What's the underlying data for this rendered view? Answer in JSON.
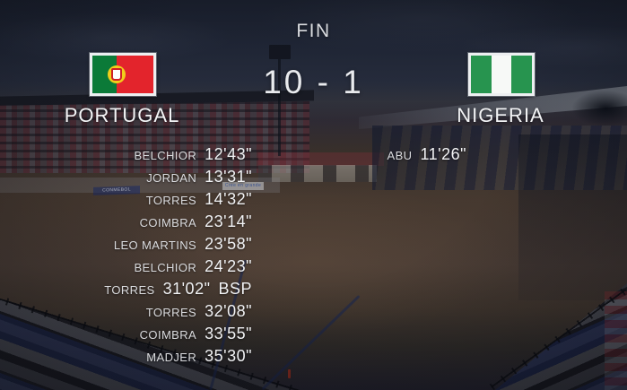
{
  "match": {
    "status": "FIN",
    "score": "10 - 1",
    "home": {
      "name": "PORTUGAL",
      "flag": "portugal-flag"
    },
    "away": {
      "name": "NIGERIA",
      "flag": "nigeria-flag"
    }
  },
  "scorers": {
    "home": [
      {
        "name": "BELCHIOR",
        "time": "12'43\"",
        "suffix": ""
      },
      {
        "name": "JORDAN",
        "time": "13'31\"",
        "suffix": ""
      },
      {
        "name": "TORRES",
        "time": "14'32\"",
        "suffix": ""
      },
      {
        "name": "COIMBRA",
        "time": "23'14\"",
        "suffix": ""
      },
      {
        "name": "LEO MARTINS",
        "time": "23'58\"",
        "suffix": ""
      },
      {
        "name": "BELCHIOR",
        "time": "24'23\"",
        "suffix": ""
      },
      {
        "name": "TORRES",
        "time": "31'02\"",
        "suffix": "BSP"
      },
      {
        "name": "TORRES",
        "time": "32'08\"",
        "suffix": ""
      },
      {
        "name": "COIMBRA",
        "time": "33'55\"",
        "suffix": ""
      },
      {
        "name": "MADJER",
        "time": "35'30\"",
        "suffix": ""
      }
    ],
    "away": [
      {
        "name": "ABU",
        "time": "11'26\"",
        "suffix": ""
      }
    ]
  },
  "background_ads": {
    "conmebol": "CONMEBOL",
    "cree": "Cree en grande"
  },
  "colors": {
    "portugal_green": "#0b7a38",
    "portugal_red": "#e3242c",
    "portugal_emblem_yellow": "#f2ce1b",
    "nigeria_green": "#27944f",
    "nigeria_white": "#f7f9f7",
    "text_primary": "#f1f2f4",
    "text_secondary": "#dadbde"
  }
}
